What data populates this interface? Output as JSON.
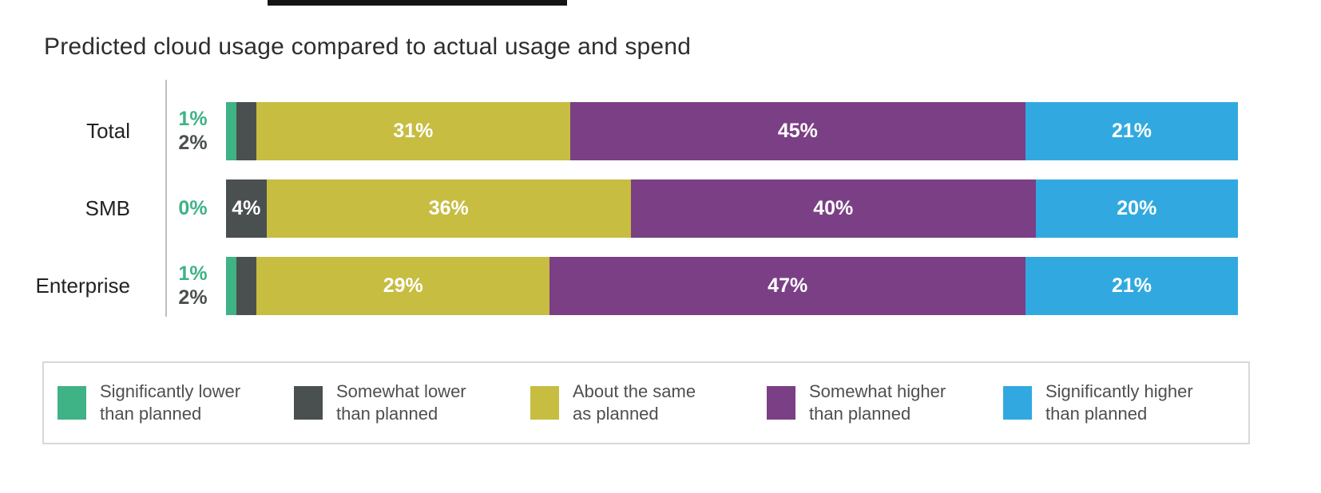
{
  "decor": {
    "top_bar_color": "#141414"
  },
  "title": "Predicted cloud usage compared to actual usage and spend",
  "chart_data": {
    "type": "bar",
    "orientation": "horizontal-stacked",
    "title": "Predicted cloud usage compared to actual usage and spend",
    "categories": [
      "Total",
      "SMB",
      "Enterprise"
    ],
    "series": [
      {
        "name": "Significantly lower than planned",
        "color": "#3FB286",
        "values": [
          1,
          0,
          1
        ],
        "legend_lines": [
          "Significantly lower",
          "than planned"
        ]
      },
      {
        "name": "Somewhat lower than planned",
        "color": "#4A5050",
        "values": [
          2,
          4,
          2
        ],
        "legend_lines": [
          "Somewhat lower",
          "than planned"
        ]
      },
      {
        "name": "About the same as planned",
        "color": "#C6BD41",
        "values": [
          31,
          36,
          29
        ],
        "legend_lines": [
          "About the same",
          "as planned"
        ]
      },
      {
        "name": "Somewhat higher than planned",
        "color": "#7B3F85",
        "values": [
          45,
          40,
          47
        ],
        "legend_lines": [
          "Somewhat higher",
          "than planned"
        ]
      },
      {
        "name": "Significantly higher than planned",
        "color": "#31A9E0",
        "values": [
          21,
          20,
          21
        ],
        "legend_lines": [
          "Significantly higher",
          "than planned"
        ]
      }
    ],
    "value_unit": "%",
    "xlim": [
      0,
      100
    ],
    "inside_label_min_value": 4,
    "grid": false,
    "legend_position": "bottom"
  }
}
